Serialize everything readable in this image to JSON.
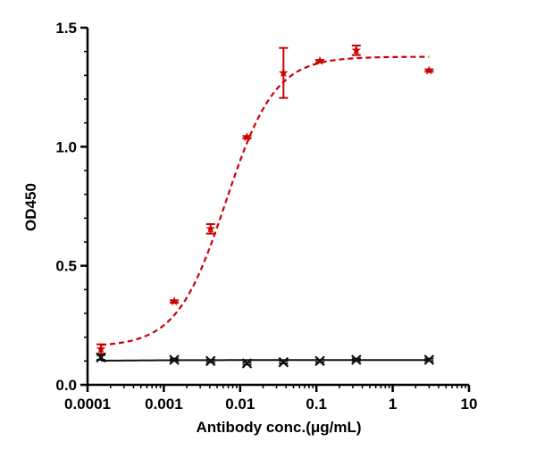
{
  "chart_data": {
    "type": "scatter",
    "title": "",
    "xlabel": "Antibody conc.(μg/mL)",
    "ylabel": "OD450",
    "xscale": "log",
    "xlim": [
      0.0001,
      10
    ],
    "ylim": [
      0,
      1.5
    ],
    "grid": false,
    "legend": "none",
    "x_ticks": [
      {
        "value": 0.0001,
        "label": "0.0001"
      },
      {
        "value": 0.001,
        "label": "0.001"
      },
      {
        "value": 0.01,
        "label": "0.01"
      },
      {
        "value": 0.1,
        "label": "0.1"
      },
      {
        "value": 1,
        "label": "1"
      },
      {
        "value": 10,
        "label": "10"
      }
    ],
    "y_ticks": [
      {
        "value": 0,
        "label": "0.0"
      },
      {
        "value": 0.5,
        "label": "0.5"
      },
      {
        "value": 1.0,
        "label": "1.0"
      },
      {
        "value": 1.5,
        "label": "1.5"
      }
    ],
    "series": [
      {
        "color": "#cc0000",
        "marker": "star",
        "line_style": "dashed",
        "x": [
          0.00015,
          0.00137,
          0.0041,
          0.0123,
          0.037,
          0.111,
          0.333,
          3.0
        ],
        "y": [
          0.15,
          0.35,
          0.655,
          1.04,
          1.31,
          1.36,
          1.405,
          1.32
        ],
        "error": [
          0.02,
          0.005,
          0.02,
          0.005,
          0.105,
          0.005,
          0.02,
          0.005
        ],
        "fit": {
          "bottom": 0.16,
          "top": 1.378,
          "ec50": 0.0065,
          "hill": 1.35
        }
      },
      {
        "color": "#111111",
        "marker": "x",
        "line_style": "solid",
        "x": [
          0.00015,
          0.00137,
          0.0041,
          0.0123,
          0.037,
          0.111,
          0.333,
          3.0
        ],
        "y": [
          0.115,
          0.105,
          0.1,
          0.09,
          0.095,
          0.1,
          0.105,
          0.105
        ],
        "error": [
          0.01,
          0.005,
          0.005,
          0.005,
          0.005,
          0.005,
          0.005,
          0.005
        ],
        "fit": {
          "bottom": 0.1,
          "top": 0.104,
          "ec50": 0.0003,
          "hill": 1.0
        }
      }
    ]
  }
}
